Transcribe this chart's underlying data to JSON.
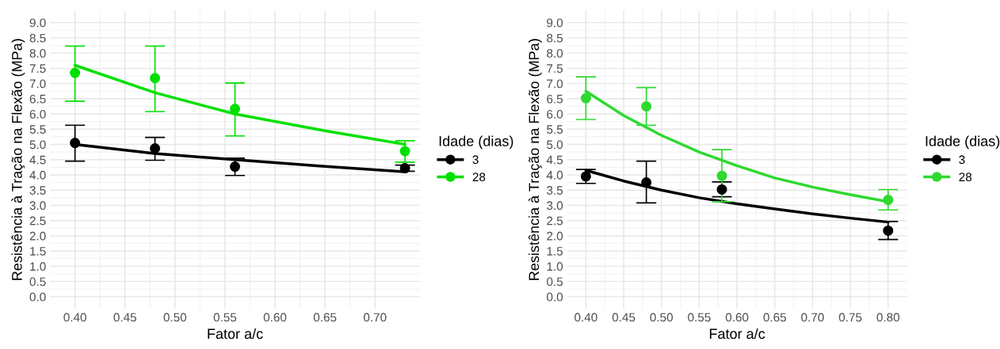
{
  "chart_data": [
    {
      "type": "scatter",
      "xlabel": "Fator a/c",
      "ylabel": "Resistência à Tração na Flexão (MPa)",
      "legend_title": "Idade (dias)",
      "legend": "right",
      "grid": true,
      "xlim": [
        0.375,
        0.745
      ],
      "ylim": [
        -0.4,
        9.4
      ],
      "xticks": [
        {
          "value": 0.4,
          "label": "0.40"
        },
        {
          "value": 0.45,
          "label": "0.45"
        },
        {
          "value": 0.5,
          "label": "0.50"
        },
        {
          "value": 0.55,
          "label": "0.55"
        },
        {
          "value": 0.6,
          "label": "0.60"
        },
        {
          "value": 0.65,
          "label": "0.65"
        },
        {
          "value": 0.7,
          "label": "0.70"
        }
      ],
      "yticks": [
        {
          "value": 0,
          "label": "0.0"
        },
        {
          "value": 0.5,
          "label": "0.5"
        },
        {
          "value": 1,
          "label": "1.0"
        },
        {
          "value": 1.5,
          "label": "1.5"
        },
        {
          "value": 2,
          "label": "2.0"
        },
        {
          "value": 2.5,
          "label": "2.5"
        },
        {
          "value": 3,
          "label": "3.0"
        },
        {
          "value": 3.5,
          "label": "3.5"
        },
        {
          "value": 4,
          "label": "4.0"
        },
        {
          "value": 4.5,
          "label": "4.5"
        },
        {
          "value": 5,
          "label": "5.0"
        },
        {
          "value": 5.5,
          "label": "5.5"
        },
        {
          "value": 6,
          "label": "6.0"
        },
        {
          "value": 6.5,
          "label": "6.5"
        },
        {
          "value": 7,
          "label": "7.0"
        },
        {
          "value": 7.5,
          "label": "7.5"
        },
        {
          "value": 8,
          "label": "8.0"
        },
        {
          "value": 8.5,
          "label": "8.5"
        },
        {
          "value": 9,
          "label": "9.0"
        }
      ],
      "series": [
        {
          "name": "3",
          "marker": "circle",
          "color": "#000000",
          "x": [
            0.4,
            0.48,
            0.56,
            0.73
          ],
          "values": [
            5.05,
            4.87,
            4.27,
            4.22
          ],
          "errors": [
            [
              4.45,
              5.63
            ],
            [
              4.48,
              5.23
            ],
            [
              3.98,
              4.55
            ],
            [
              4.12,
              4.32
            ]
          ]
        },
        {
          "name": "28",
          "marker": "circle",
          "color": "#00e000",
          "x": [
            0.4,
            0.48,
            0.56,
            0.73
          ],
          "values": [
            7.35,
            7.18,
            6.17,
            4.78
          ],
          "errors": [
            [
              6.42,
              8.23
            ],
            [
              6.08,
              8.23
            ],
            [
              5.28,
              7.02
            ],
            [
              4.42,
              5.12
            ]
          ]
        },
        {
          "type": "line",
          "color": "#000000",
          "x": [
            0.4,
            0.48,
            0.56,
            0.65,
            0.73
          ],
          "values": [
            5.0,
            4.7,
            4.5,
            4.28,
            4.1
          ]
        },
        {
          "type": "line",
          "color": "#00e000",
          "x": [
            0.4,
            0.48,
            0.56,
            0.65,
            0.73
          ],
          "values": [
            7.6,
            6.7,
            6.0,
            5.45,
            5.0
          ]
        }
      ]
    },
    {
      "type": "scatter",
      "xlabel": "Fator a/c",
      "ylabel": "Resistência à Tração na Flexão (MPa)",
      "legend_title": "Idade (dias)",
      "legend": "right",
      "grid": true,
      "xlim": [
        0.375,
        0.825
      ],
      "ylim": [
        -0.4,
        9.4
      ],
      "xticks": [
        {
          "value": 0.4,
          "label": "0.40"
        },
        {
          "value": 0.45,
          "label": "0.45"
        },
        {
          "value": 0.5,
          "label": "0.50"
        },
        {
          "value": 0.55,
          "label": "0.55"
        },
        {
          "value": 0.6,
          "label": "0.60"
        },
        {
          "value": 0.65,
          "label": "0.65"
        },
        {
          "value": 0.7,
          "label": "0.70"
        },
        {
          "value": 0.75,
          "label": "0.75"
        },
        {
          "value": 0.8,
          "label": "0.80"
        }
      ],
      "yticks": [
        {
          "value": 0,
          "label": "0.0"
        },
        {
          "value": 0.5,
          "label": "0.5"
        },
        {
          "value": 1,
          "label": "1.0"
        },
        {
          "value": 1.5,
          "label": "1.5"
        },
        {
          "value": 2,
          "label": "2.0"
        },
        {
          "value": 2.5,
          "label": "2.5"
        },
        {
          "value": 3,
          "label": "3.0"
        },
        {
          "value": 3.5,
          "label": "3.5"
        },
        {
          "value": 4,
          "label": "4.0"
        },
        {
          "value": 4.5,
          "label": "4.5"
        },
        {
          "value": 5,
          "label": "5.0"
        },
        {
          "value": 5.5,
          "label": "5.5"
        },
        {
          "value": 6,
          "label": "6.0"
        },
        {
          "value": 6.5,
          "label": "6.5"
        },
        {
          "value": 7,
          "label": "7.0"
        },
        {
          "value": 7.5,
          "label": "7.5"
        },
        {
          "value": 8,
          "label": "8.0"
        },
        {
          "value": 8.5,
          "label": "8.5"
        },
        {
          "value": 9,
          "label": "9.0"
        }
      ],
      "series": [
        {
          "name": "3",
          "marker": "circle",
          "color": "#000000",
          "x": [
            0.4,
            0.48,
            0.58,
            0.8
          ],
          "values": [
            3.95,
            3.75,
            3.52,
            2.17
          ],
          "errors": [
            [
              3.72,
              4.18
            ],
            [
              3.08,
              4.45
            ],
            [
              3.28,
              3.77
            ],
            [
              1.88,
              2.47
            ]
          ]
        },
        {
          "name": "28",
          "marker": "circle",
          "color": "#2fd92f",
          "x": [
            0.4,
            0.48,
            0.58,
            0.8
          ],
          "values": [
            6.52,
            6.25,
            3.97,
            3.18
          ],
          "errors": [
            [
              5.82,
              7.22
            ],
            [
              5.63,
              6.87
            ],
            [
              3.12,
              4.83
            ],
            [
              2.85,
              3.52
            ]
          ]
        },
        {
          "type": "line",
          "color": "#000000",
          "x": [
            0.4,
            0.45,
            0.5,
            0.55,
            0.6,
            0.65,
            0.7,
            0.75,
            0.8
          ],
          "values": [
            4.15,
            3.8,
            3.5,
            3.25,
            3.05,
            2.88,
            2.72,
            2.58,
            2.45
          ]
        },
        {
          "type": "line",
          "color": "#2fd92f",
          "x": [
            0.4,
            0.45,
            0.5,
            0.55,
            0.6,
            0.65,
            0.7,
            0.75,
            0.8
          ],
          "values": [
            6.75,
            5.95,
            5.3,
            4.75,
            4.3,
            3.9,
            3.6,
            3.35,
            3.12
          ]
        }
      ]
    }
  ]
}
